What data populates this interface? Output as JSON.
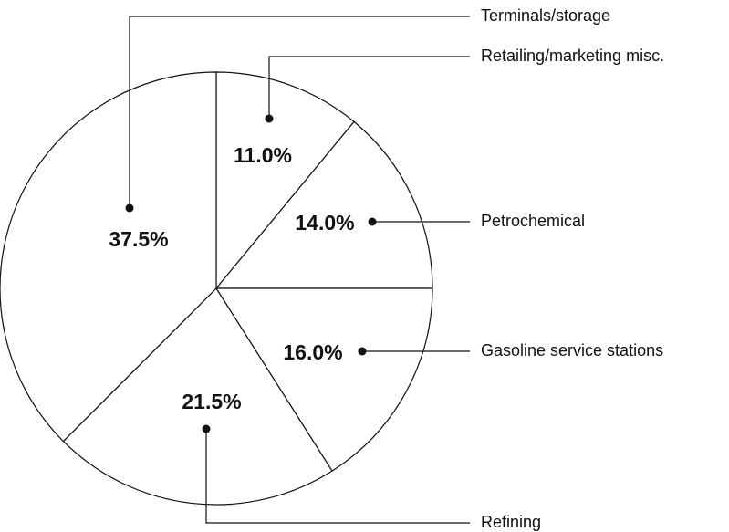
{
  "chart_data": {
    "type": "pie",
    "categories": [
      "Retailing/marketing misc.",
      "Petrochemical",
      "Gasoline service stations",
      "Refining",
      "Terminals/storage"
    ],
    "values": [
      11.0,
      14.0,
      16.0,
      21.5,
      37.5
    ],
    "value_labels": [
      "11.0%",
      "14.0%",
      "16.0%",
      "21.5%",
      "37.5%"
    ],
    "color": "#ffffff"
  }
}
